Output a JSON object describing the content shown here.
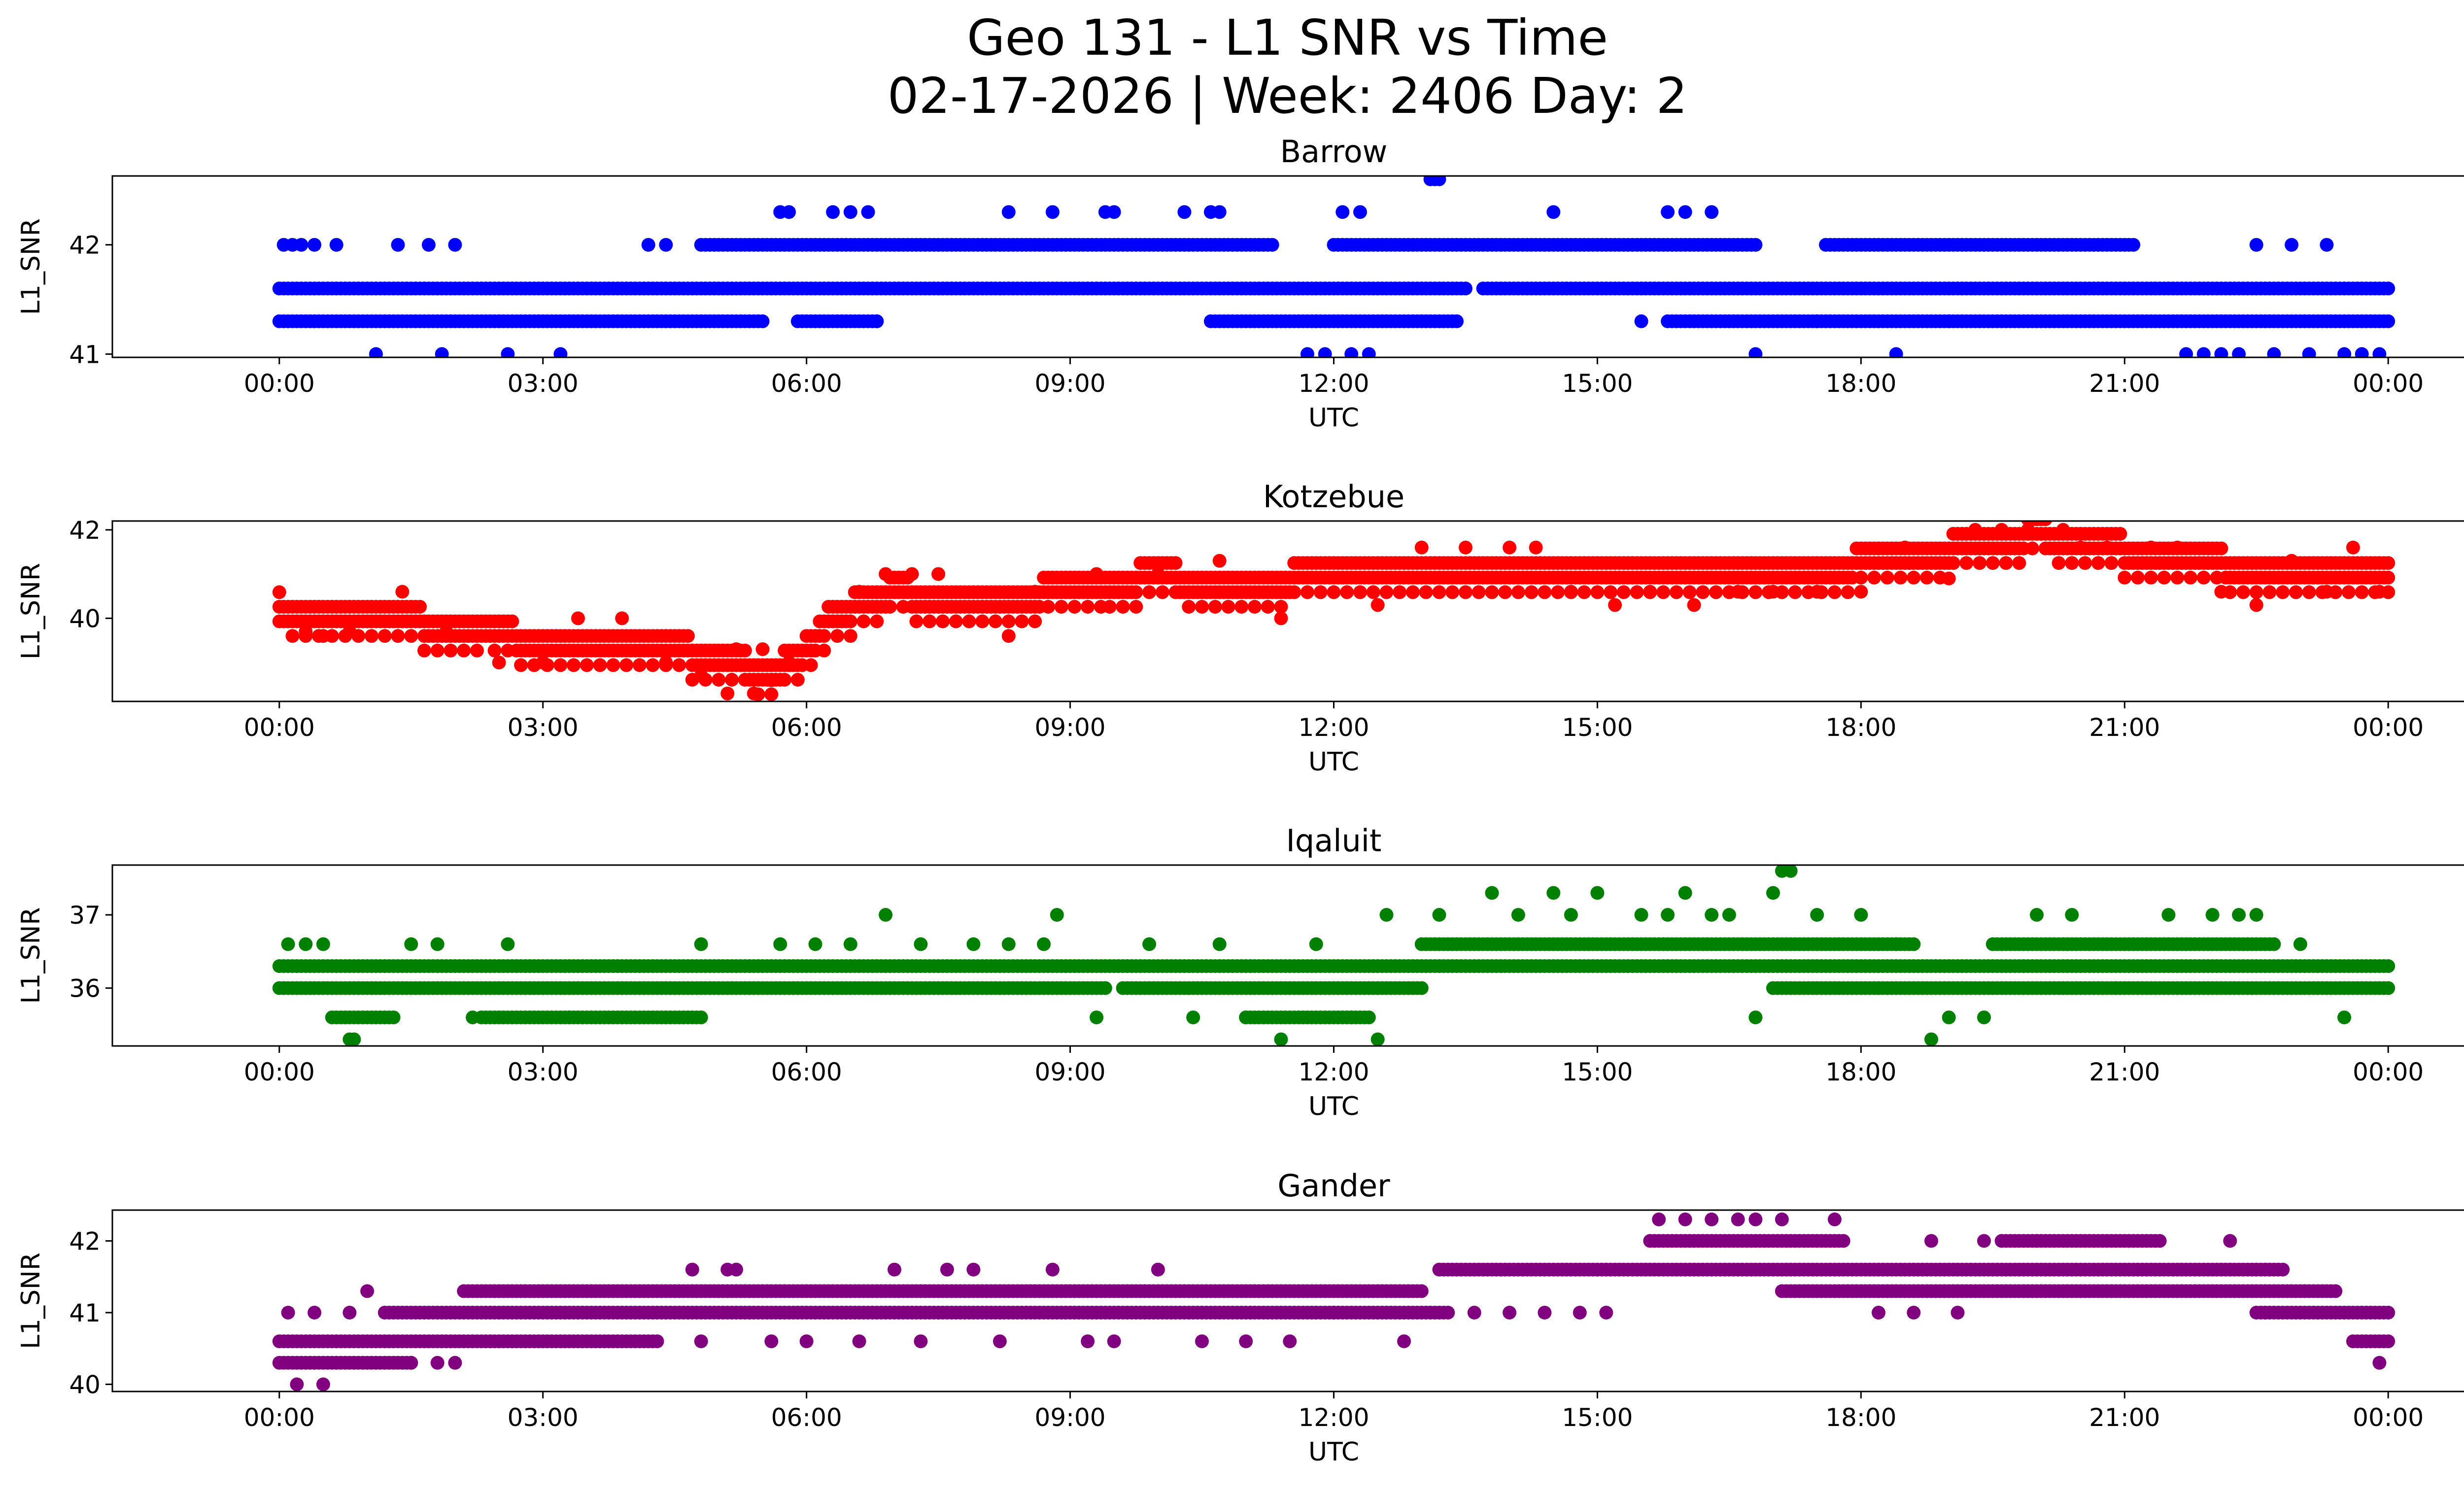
{
  "figure": {
    "title_line1": "Geo 131 - L1 SNR vs Time",
    "title_line2": "02-17-2026 | Week: 2406 Day: 2"
  },
  "chart_data": [
    {
      "type": "scatter",
      "title": "Barrow",
      "xlabel": "UTC",
      "ylabel": "L1_SNR",
      "color": "#0000ff",
      "xlim_hours": [
        -1.9,
        25.9
      ],
      "ylim": [
        40.97,
        42.63
      ],
      "x_ticks": [
        0,
        3,
        6,
        9,
        12,
        15,
        18,
        21,
        24
      ],
      "x_tick_labels": [
        "00:00",
        "03:00",
        "06:00",
        "09:00",
        "12:00",
        "15:00",
        "18:00",
        "21:00",
        "00:00"
      ],
      "y_ticks": [
        41,
        42
      ],
      "y_tick_labels": [
        "41",
        "42"
      ],
      "series": [
        {
          "name": "band 41.6",
          "kind": "band",
          "y": 41.6,
          "segments": [
            [
              0,
              13.5
            ],
            [
              13.7,
              24
            ]
          ]
        },
        {
          "name": "band 41.3",
          "kind": "band",
          "y": 41.3,
          "segments": [
            [
              0,
              5.5
            ],
            [
              5.9,
              6.8
            ],
            [
              10.6,
              13.4
            ],
            [
              15.8,
              24
            ]
          ]
        },
        {
          "name": "band 42.0",
          "kind": "band",
          "y": 42.0,
          "segments": [
            [
              4.8,
              11.3
            ],
            [
              12.0,
              16.8
            ],
            [
              17.6,
              21.1
            ]
          ]
        },
        {
          "name": "points",
          "kind": "points",
          "x": [
            0.05,
            0.15,
            0.25,
            0.4,
            0.65,
            1.1,
            1.35,
            1.7,
            1.85,
            2.0,
            2.6,
            3.2,
            4.2,
            4.4,
            5.7,
            5.8,
            6.3,
            6.5,
            6.7,
            6.8,
            8.3,
            8.8,
            9.4,
            9.5,
            10.3,
            10.6,
            10.7,
            11.7,
            11.8,
            11.9,
            12.1,
            12.2,
            12.3,
            12.4,
            13.1,
            13.15,
            13.2,
            14.5,
            15.5,
            15.8,
            16.0,
            16.3,
            16.8,
            17.5,
            18.4,
            19.0,
            21.7,
            21.9,
            22.1,
            22.3,
            22.5,
            22.7,
            22.9,
            23.1,
            23.3,
            23.5,
            23.7,
            23.9
          ],
          "y": [
            42,
            42,
            42,
            42,
            42,
            41,
            42,
            42,
            41,
            42,
            41,
            41,
            42,
            42,
            42.3,
            42.3,
            42.3,
            42.3,
            42.3,
            41.3,
            42.3,
            42.3,
            42.3,
            42.3,
            42.3,
            42.3,
            42.3,
            41,
            41.3,
            41,
            42.3,
            41,
            42.3,
            41,
            42.6,
            42.6,
            42.6,
            42.3,
            41.3,
            42.3,
            42.3,
            42.3,
            41,
            41.3,
            41,
            41.3,
            41,
            41,
            41,
            41,
            42,
            41,
            42,
            41,
            42,
            41,
            41,
            41
          ]
        }
      ]
    },
    {
      "type": "scatter",
      "title": "Kotzebue",
      "xlabel": "UTC",
      "ylabel": "L1_SNR",
      "color": "#ff0000",
      "xlim_hours": [
        -1.9,
        25.9
      ],
      "ylim": [
        38.12,
        42.2
      ],
      "x_ticks": [
        0,
        3,
        6,
        9,
        12,
        15,
        18,
        21,
        24
      ],
      "x_tick_labels": [
        "00:00",
        "03:00",
        "06:00",
        "09:00",
        "12:00",
        "15:00",
        "18:00",
        "21:00",
        "00:00"
      ],
      "y_ticks": [
        40,
        42
      ],
      "y_tick_labels": [
        "40",
        "42"
      ],
      "series": [
        {
          "name": "trend",
          "kind": "trend",
          "x": [
            0,
            1,
            1.5,
            2.5,
            3,
            4,
            4.7,
            5.2,
            5.5,
            5.9,
            6.3,
            7,
            8,
            9,
            10,
            11,
            12,
            13,
            14,
            15,
            16,
            17,
            18,
            19,
            20,
            21,
            22,
            23,
            24
          ],
          "y": [
            40.1,
            40.0,
            39.8,
            39.5,
            39.3,
            39.3,
            39.1,
            38.9,
            38.6,
            38.9,
            39.9,
            40.5,
            40.1,
            40.6,
            40.8,
            40.6,
            40.9,
            40.9,
            40.9,
            40.9,
            40.9,
            40.9,
            41.1,
            41.4,
            41.8,
            41.4,
            41.1,
            41.0,
            41.0
          ]
        },
        {
          "name": "points",
          "kind": "points",
          "x": [
            0.3,
            0.8,
            1.4,
            1.9,
            2.5,
            3.0,
            3.4,
            3.9,
            4.4,
            4.8,
            5.1,
            5.2,
            5.4,
            5.5,
            5.6,
            5.8,
            6.6,
            6.9,
            7.2,
            7.5,
            8.3,
            8.6,
            9.3,
            10.0,
            10.7,
            11.4,
            12.5,
            13.0,
            13.5,
            14.0,
            14.3,
            14.7,
            15.2,
            15.6,
            16.1,
            16.6,
            17.0,
            17.5,
            18.0,
            18.5,
            19.0,
            19.3,
            19.6,
            19.9,
            20.3,
            20.5,
            20.8,
            21.3,
            21.6,
            22.1,
            22.5,
            22.9,
            23.3,
            23.6,
            23.9
          ],
          "y": [
            39.7,
            39.7,
            40.6,
            39.7,
            39.0,
            39.0,
            40.0,
            40.0,
            39.0,
            38.7,
            38.3,
            39.3,
            38.3,
            39.3,
            38.6,
            39.0,
            40.6,
            41.0,
            41.0,
            41.0,
            39.6,
            40.6,
            41.0,
            41.0,
            41.3,
            40.0,
            40.3,
            41.6,
            41.6,
            41.6,
            41.6,
            40.6,
            40.3,
            40.6,
            40.3,
            40.6,
            40.6,
            40.6,
            40.6,
            41.6,
            40.9,
            42.0,
            42.0,
            42.0,
            42.0,
            41.6,
            41.6,
            41.6,
            41.6,
            40.6,
            40.3,
            41.3,
            40.6,
            41.6,
            40.6
          ]
        }
      ]
    },
    {
      "type": "scatter",
      "title": "Iqaluit",
      "xlabel": "UTC",
      "ylabel": "L1_SNR",
      "color": "#008000",
      "xlim_hours": [
        -1.9,
        25.9
      ],
      "ylim": [
        35.21,
        37.68
      ],
      "x_ticks": [
        0,
        3,
        6,
        9,
        12,
        15,
        18,
        21,
        24
      ],
      "x_tick_labels": [
        "00:00",
        "03:00",
        "06:00",
        "09:00",
        "12:00",
        "15:00",
        "18:00",
        "21:00",
        "00:00"
      ],
      "y_ticks": [
        36,
        37
      ],
      "y_tick_labels": [
        "36",
        "37"
      ],
      "series": [
        {
          "name": "band 36.3",
          "kind": "band",
          "y": 36.3,
          "segments": [
            [
              0,
              24
            ]
          ]
        },
        {
          "name": "band 36.0",
          "kind": "band",
          "y": 36.0,
          "segments": [
            [
              0,
              9.4
            ],
            [
              9.6,
              13.0
            ],
            [
              17.0,
              24
            ]
          ]
        },
        {
          "name": "band 36.6",
          "kind": "band",
          "y": 36.6,
          "segments": [
            [
              13.0,
              18.6
            ],
            [
              19.5,
              22.7
            ]
          ]
        },
        {
          "name": "band 35.6",
          "kind": "band",
          "y": 35.6,
          "segments": [
            [
              0.6,
              1.3
            ],
            [
              2.3,
              4.8
            ],
            [
              11.0,
              12.4
            ]
          ]
        },
        {
          "name": "points",
          "kind": "points",
          "x": [
            0.1,
            0.3,
            0.5,
            0.8,
            0.85,
            1.5,
            1.8,
            2.2,
            2.6,
            3.3,
            4.8,
            5.7,
            6.1,
            6.5,
            6.9,
            7.3,
            7.9,
            8.3,
            8.7,
            8.85,
            9.3,
            9.9,
            10.4,
            10.7,
            11.0,
            11.4,
            11.8,
            12.2,
            12.5,
            12.6,
            13.2,
            13.8,
            14.1,
            14.5,
            14.7,
            15.0,
            15.5,
            15.8,
            16.0,
            16.3,
            16.5,
            16.8,
            17.0,
            17.1,
            17.2,
            17.5,
            18.0,
            18.4,
            18.8,
            19.0,
            19.4,
            20.0,
            20.4,
            20.9,
            21.5,
            22.0,
            22.3,
            22.5,
            23.0,
            23.5
          ],
          "y": [
            36.6,
            36.6,
            36.6,
            35.3,
            35.3,
            36.6,
            36.6,
            35.6,
            36.6,
            35.6,
            36.6,
            36.6,
            36.6,
            36.6,
            37.0,
            36.6,
            36.6,
            36.6,
            36.6,
            37.0,
            35.6,
            36.6,
            35.6,
            36.6,
            35.6,
            35.3,
            36.6,
            35.6,
            35.3,
            37.0,
            37.0,
            37.3,
            37.0,
            37.3,
            37.0,
            37.3,
            37.0,
            37.0,
            37.3,
            37.0,
            37.0,
            35.6,
            37.3,
            37.6,
            37.6,
            37.0,
            37.0,
            36.6,
            35.3,
            35.6,
            35.6,
            37.0,
            37.0,
            36.0,
            37.0,
            37.0,
            37.0,
            37.0,
            36.6,
            35.6
          ]
        }
      ]
    },
    {
      "type": "scatter",
      "title": "Gander",
      "xlabel": "UTC",
      "ylabel": "L1_SNR",
      "color": "#800080",
      "xlim_hours": [
        -1.9,
        25.9
      ],
      "ylim": [
        39.9,
        42.43
      ],
      "x_ticks": [
        0,
        3,
        6,
        9,
        12,
        15,
        18,
        21,
        24
      ],
      "x_tick_labels": [
        "00:00",
        "03:00",
        "06:00",
        "09:00",
        "12:00",
        "15:00",
        "18:00",
        "21:00",
        "00:00"
      ],
      "y_ticks": [
        40,
        41,
        42
      ],
      "y_tick_labels": [
        "40",
        "41",
        "42"
      ],
      "series": [
        {
          "name": "band 40.3",
          "kind": "band",
          "y": 40.3,
          "segments": [
            [
              0,
              1.5
            ]
          ]
        },
        {
          "name": "band 40.6",
          "kind": "band",
          "y": 40.6,
          "segments": [
            [
              0,
              4.3
            ],
            [
              23.6,
              24
            ]
          ]
        },
        {
          "name": "band 41.0",
          "kind": "band",
          "y": 41.0,
          "segments": [
            [
              1.2,
              13.3
            ],
            [
              22.5,
              24
            ]
          ]
        },
        {
          "name": "band 41.3",
          "kind": "band",
          "y": 41.3,
          "segments": [
            [
              2.1,
              13.0
            ],
            [
              17.1,
              23.4
            ]
          ]
        },
        {
          "name": "band 41.6",
          "kind": "band",
          "y": 41.6,
          "segments": [
            [
              13.2,
              22.8
            ]
          ]
        },
        {
          "name": "band 42.0",
          "kind": "band",
          "y": 42.0,
          "segments": [
            [
              15.6,
              17.8
            ],
            [
              19.6,
              21.4
            ]
          ]
        },
        {
          "name": "points",
          "kind": "points",
          "x": [
            0.1,
            0.2,
            0.4,
            0.5,
            0.8,
            1.0,
            1.5,
            1.8,
            2.0,
            4.7,
            4.8,
            5.1,
            5.2,
            5.6,
            6.0,
            6.6,
            7.0,
            7.3,
            7.6,
            7.9,
            8.2,
            8.8,
            9.2,
            9.5,
            10.0,
            10.5,
            11.0,
            11.5,
            12.0,
            12.8,
            13.6,
            14.0,
            14.4,
            14.8,
            15.1,
            15.7,
            16.0,
            16.3,
            16.6,
            16.8,
            17.1,
            17.7,
            18.2,
            18.6,
            18.8,
            19.1,
            19.4,
            20.0,
            22.2,
            22.6,
            23.9
          ],
          "y": [
            41,
            40,
            41,
            40,
            41,
            41.3,
            40.3,
            40.3,
            40.3,
            41.6,
            40.6,
            41.6,
            41.6,
            40.6,
            40.6,
            40.6,
            41.6,
            40.6,
            41.6,
            41.6,
            40.6,
            41.6,
            40.6,
            40.6,
            41.6,
            40.6,
            40.6,
            40.6,
            41,
            40.6,
            41,
            41,
            41,
            41,
            41,
            42.3,
            42.3,
            42.3,
            42.3,
            42.3,
            42.3,
            42.3,
            41,
            41,
            42,
            41,
            42,
            42,
            42,
            41,
            40.3
          ]
        }
      ]
    }
  ]
}
